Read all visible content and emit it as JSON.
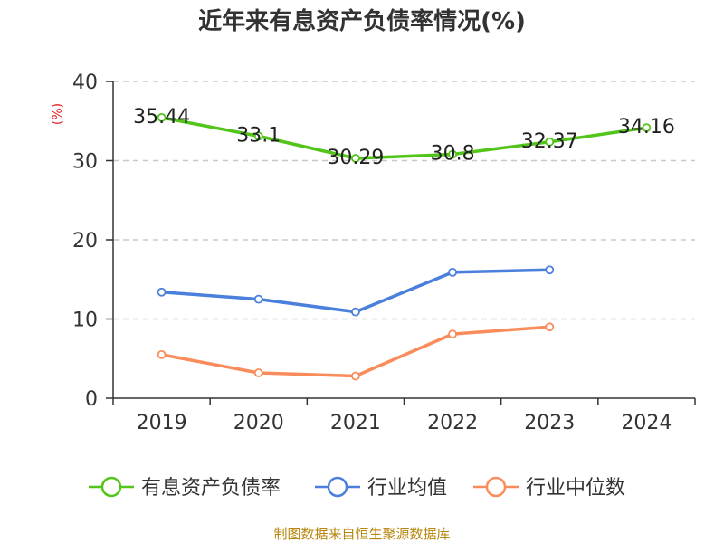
{
  "chart_data": {
    "type": "line",
    "title": "近年来有息资产负债率情况(%)",
    "ylabel": "(%)",
    "xlabel": "",
    "categories": [
      "2019",
      "2020",
      "2021",
      "2022",
      "2023",
      "2024"
    ],
    "ylim": [
      0,
      40
    ],
    "yticks": [
      0,
      10,
      20,
      30,
      40
    ],
    "grid": true,
    "legend_position": "bottom",
    "series": [
      {
        "name": "有息资产负债率",
        "color": "#52c41a",
        "values": [
          35.44,
          33.1,
          30.29,
          30.8,
          32.37,
          34.16
        ],
        "labels": [
          "35.44",
          "33.1",
          "30.29",
          "30.8",
          "32.37",
          "34.16"
        ]
      },
      {
        "name": "行业均值",
        "color": "#4a7fdc",
        "values": [
          13.4,
          12.5,
          10.9,
          15.9,
          16.2,
          null
        ],
        "labels": []
      },
      {
        "name": "行业中位数",
        "color": "#f98c5a",
        "values": [
          5.5,
          3.2,
          2.8,
          8.1,
          9.0,
          null
        ],
        "labels": []
      }
    ],
    "source": "制图数据来自恒生聚源数据库"
  }
}
